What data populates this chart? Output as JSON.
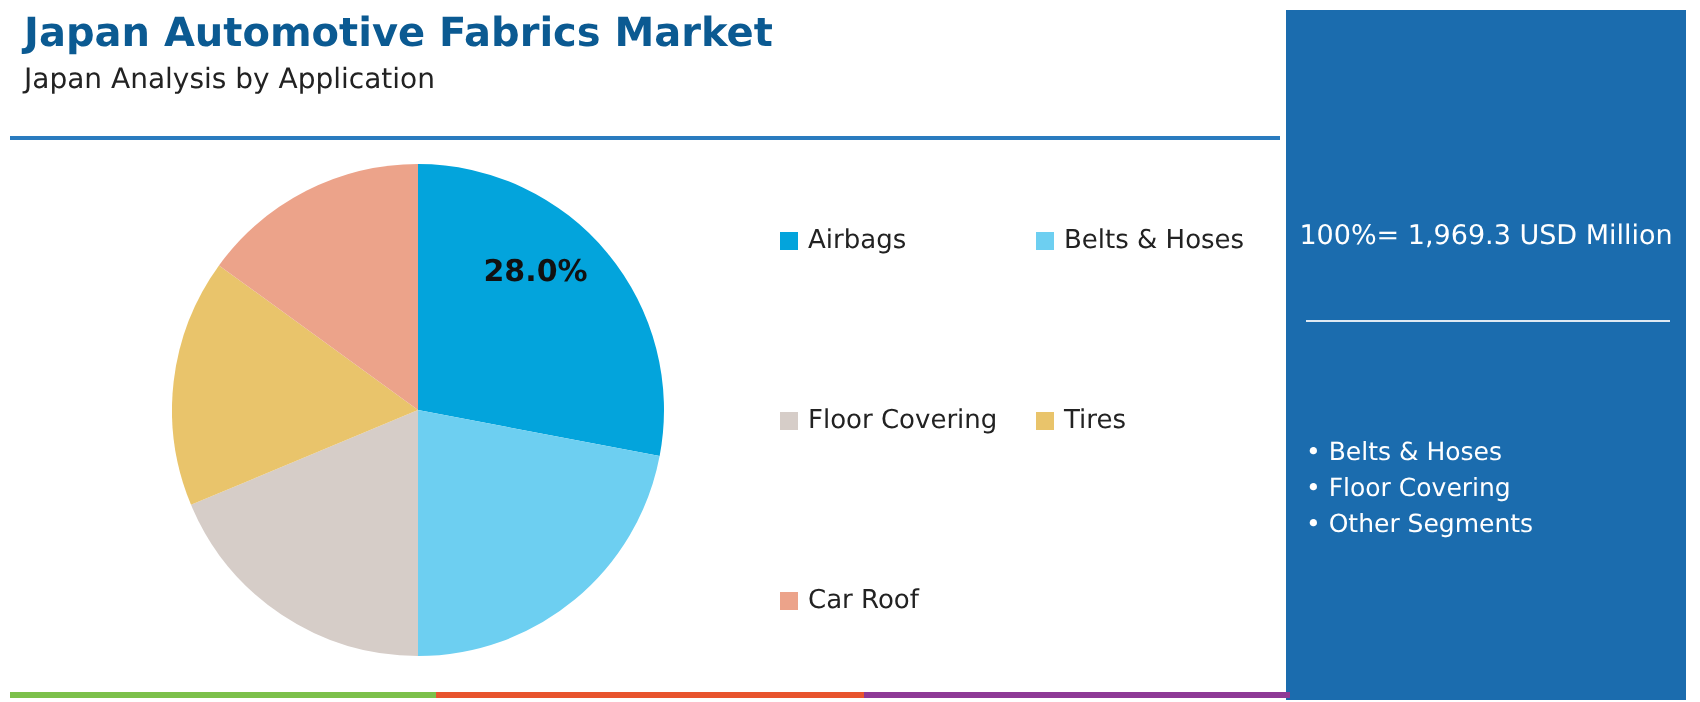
{
  "chart_data": {
    "type": "pie",
    "title": "Japan Automotive Fabrics Market",
    "subtitle": "Japan Analysis by Application",
    "categories": [
      "Airbags",
      "Belts & Hoses",
      "Floor Covering",
      "Tires",
      "Car Roof"
    ],
    "values": [
      28.0,
      22.0,
      18.7,
      16.3,
      15.0
    ],
    "colors": [
      "#03a4dc",
      "#6dcff1",
      "#d6cdc8",
      "#e9c46b",
      "#eca38a"
    ],
    "value_labels": [
      "28.0%",
      null,
      null,
      null,
      null
    ],
    "legend": "right",
    "annotations": [
      "100%= 1,969.3 USD Million",
      "• Belts & Hoses",
      "• Floor Covering",
      "• Other Segments"
    ]
  }
}
